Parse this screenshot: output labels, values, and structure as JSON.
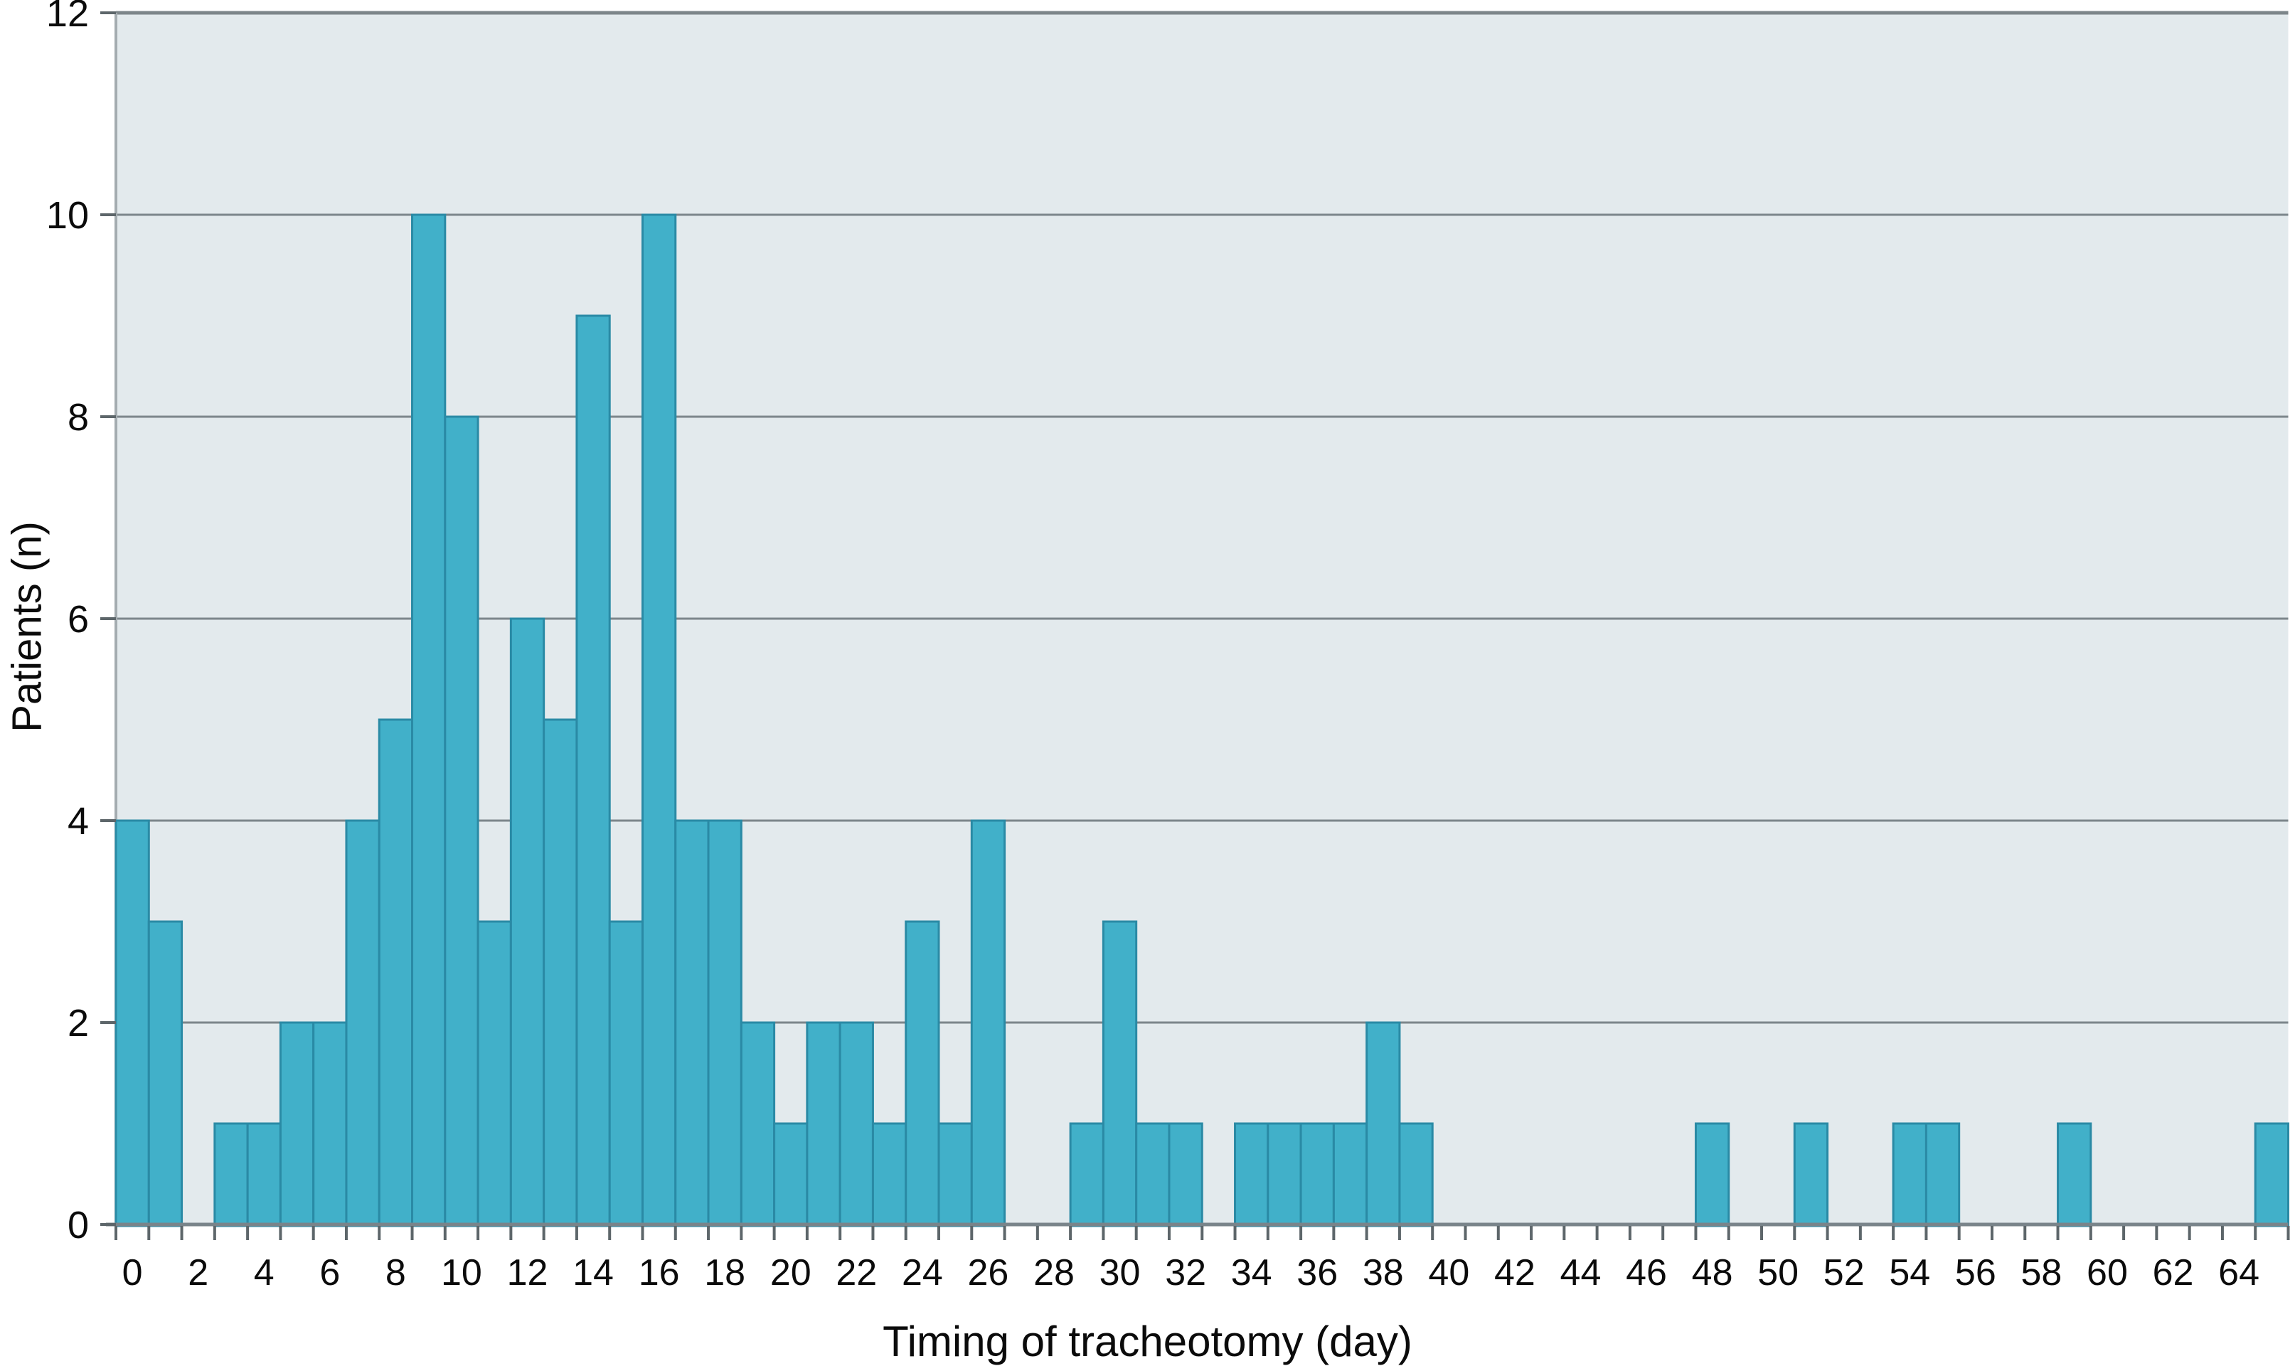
{
  "figure": {
    "xlabel": "Timing of tracheotomy (day)",
    "ylabel": "Patients (n)"
  },
  "chart_data": {
    "type": "bar",
    "title": "",
    "xlabel": "Timing of tracheotomy (day)",
    "ylabel": "Patients (n)",
    "x": [
      0,
      1,
      2,
      3,
      4,
      5,
      6,
      7,
      8,
      9,
      10,
      11,
      12,
      13,
      14,
      15,
      16,
      17,
      18,
      19,
      20,
      21,
      22,
      23,
      24,
      25,
      26,
      27,
      28,
      29,
      30,
      31,
      32,
      33,
      34,
      35,
      36,
      37,
      38,
      39,
      40,
      41,
      42,
      43,
      44,
      45,
      46,
      47,
      48,
      49,
      50,
      51,
      52,
      53,
      54,
      55,
      56,
      57,
      58,
      59,
      60,
      61,
      62,
      63,
      64,
      65
    ],
    "values": [
      4,
      3,
      0,
      1,
      1,
      2,
      2,
      4,
      5,
      10,
      8,
      3,
      6,
      5,
      9,
      3,
      10,
      4,
      4,
      2,
      1,
      2,
      2,
      1,
      3,
      1,
      4,
      0,
      0,
      1,
      3,
      1,
      1,
      0,
      1,
      1,
      1,
      1,
      2,
      1,
      0,
      0,
      0,
      0,
      0,
      0,
      0,
      0,
      1,
      0,
      0,
      1,
      0,
      0,
      1,
      1,
      0,
      0,
      0,
      1,
      0,
      0,
      0,
      0,
      0,
      1
    ],
    "bar_width": 1,
    "xlim": [
      -0.5,
      65.5
    ],
    "ylim": [
      0,
      12
    ],
    "x_tick_label_values": [
      0,
      2,
      4,
      6,
      8,
      10,
      12,
      14,
      16,
      18,
      20,
      22,
      24,
      26,
      28,
      30,
      32,
      34,
      36,
      38,
      40,
      42,
      44,
      46,
      48,
      50,
      52,
      54,
      56,
      58,
      60,
      62,
      64
    ],
    "y_tick_values": [
      0,
      2,
      4,
      6,
      8,
      10,
      12
    ],
    "grid": "horizontal",
    "legend": "none",
    "colors": {
      "bar_fill": "#41b0c9",
      "bar_edge": "#2a8aa5",
      "plot_bg": "#e3eaed",
      "gridline": "#7c868b",
      "top_frame": "#7d868a",
      "y_axis_line": "#a4acb0",
      "x_axis_line": "#79848a",
      "tick": "#5d666a",
      "text": "#0b0b0b"
    }
  }
}
